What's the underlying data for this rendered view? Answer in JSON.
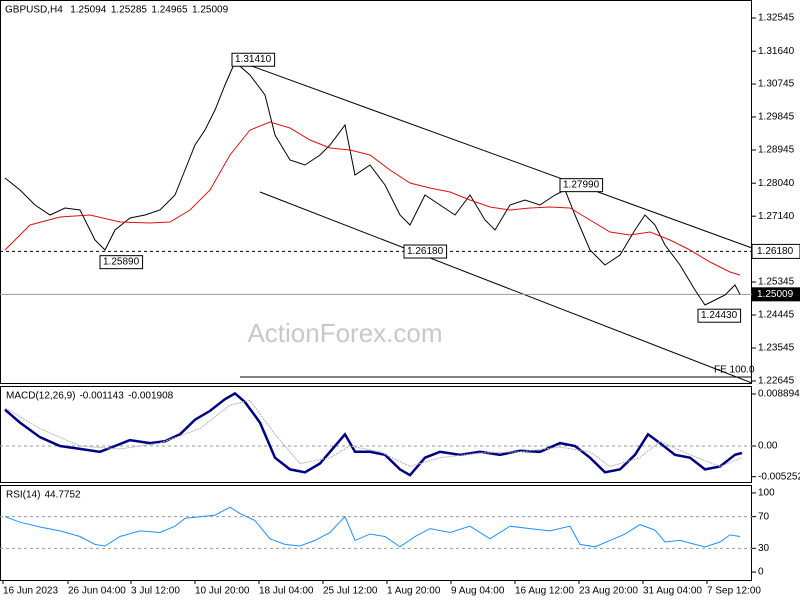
{
  "header": {
    "symbol": "GBPUSD,H4",
    "ohlc": [
      1.25094,
      1.25285,
      1.24965,
      1.25009
    ]
  },
  "watermark": "ActionForex.com",
  "chart_data": [
    {
      "type": "line",
      "panel": "price",
      "ylim": [
        1.22591,
        1.32981
      ],
      "yticks": [
        1.32545,
        {
          "value": 1.3164,
          "label": "1.31640"
        },
        1.30745,
        1.29845,
        1.28945,
        {
          "value": 1.2804,
          "label": "1.28040"
        },
        {
          "value": 1.2714,
          "label": "1.27140"
        },
        1.25345,
        1.24445,
        1.23545,
        1.22645
      ],
      "xlim": [
        0,
        376
      ],
      "xticks": [
        {
          "value": 1.5,
          "label": "16 Jun 2023"
        },
        {
          "value": 34,
          "label": "26 Jun 04:00"
        },
        {
          "value": 65.5,
          "label": "3 Jul 12:00"
        },
        {
          "value": 97.5,
          "label": "10 Jul 20:00"
        },
        {
          "value": 129.5,
          "label": "18 Jul 04:00"
        },
        {
          "value": 161.5,
          "label": "25 Jul 12:00"
        },
        {
          "value": 193.5,
          "label": "1 Aug 20:00"
        },
        {
          "value": 225.5,
          "label": "9 Aug 04:00"
        },
        {
          "value": 257.5,
          "label": "16 Aug 12:00"
        },
        {
          "value": 289.5,
          "label": "23 Aug 20:00"
        },
        {
          "value": 321.5,
          "label": "31 Aug 04:00"
        },
        {
          "value": 353.5,
          "label": "7 Sep 12:00"
        }
      ],
      "series": [
        {
          "color": "#000000",
          "x": [
            2.5,
            10,
            17.5,
            25,
            32.5,
            40,
            47.5,
            52.5,
            57.5,
            65,
            72.5,
            80,
            87.5,
            92.5,
            97.5,
            102.5,
            107.5,
            112.5,
            117.5,
            125,
            132.5,
            137.5,
            145,
            152.5,
            160,
            165,
            172.5,
            177.5,
            185,
            192.5,
            200,
            205,
            212.5,
            220,
            227.5,
            235,
            242.5,
            247.5,
            255,
            262.5,
            270,
            277.5,
            282.5,
            287.5,
            295,
            302.5,
            310,
            317.5,
            322.5,
            327.5,
            332.5,
            340,
            347.5,
            352.5,
            357.5,
            362.5,
            367.5,
            370
          ],
          "values": [
            1.28181,
            1.27854,
            1.27445,
            1.27172,
            1.27363,
            1.27309,
            1.2649,
            1.26218,
            1.26763,
            1.2709,
            1.27172,
            1.27309,
            1.27718,
            1.284,
            1.29081,
            1.2949,
            1.30036,
            1.30718,
            1.31345,
            1.3099,
            1.30445,
            1.29354,
            1.28672,
            1.28536,
            1.28809,
            1.29081,
            1.29627,
            1.28263,
            1.28536,
            1.2799,
            1.27172,
            1.269,
            1.27718,
            1.27445,
            1.27172,
            1.27718,
            1.27036,
            1.26763,
            1.27445,
            1.27581,
            1.27445,
            1.27718,
            1.27854,
            1.27172,
            1.26218,
            1.25809,
            1.26081,
            1.26763,
            1.27172,
            1.269,
            1.26354,
            1.25809,
            1.25127,
            1.24718,
            1.24854,
            1.24991,
            1.25263,
            1.25009
          ]
        },
        {
          "color": "#dd1111",
          "x": [
            2.5,
            15,
            30,
            45,
            60,
            75,
            85,
            95,
            105,
            115,
            125,
            135,
            145,
            155,
            165,
            175,
            185,
            195,
            205,
            215,
            225,
            235,
            245,
            255,
            265,
            275,
            285,
            295,
            305,
            315,
            325,
            335,
            345,
            355,
            365,
            370
          ],
          "values": [
            1.26218,
            1.269,
            1.27118,
            1.27172,
            1.26981,
            1.26954,
            1.26981,
            1.27309,
            1.27854,
            1.28809,
            1.2949,
            1.29709,
            1.29545,
            1.29218,
            1.29,
            1.28945,
            1.28809,
            1.284,
            1.28045,
            1.27909,
            1.278,
            1.27581,
            1.27391,
            1.27309,
            1.27363,
            1.27391,
            1.27363,
            1.27036,
            1.26709,
            1.26627,
            1.26709,
            1.2649,
            1.26218,
            1.25891,
            1.25618,
            1.25536
          ]
        }
      ],
      "annotations": [
        {
          "text": "1.31410",
          "value": 1.3141,
          "x": 116
        },
        {
          "text": "1.25890",
          "value": 1.2589,
          "x": 50
        },
        {
          "text": "1.26180",
          "value": 1.2618,
          "x": 202
        },
        {
          "text": "1.27990",
          "value": 1.2799,
          "x": 280
        },
        {
          "text": "1.24430",
          "value": 1.2443,
          "x": 349
        }
      ],
      "trendlines": [
        {
          "x": [
            117.5,
            376
          ],
          "values": [
            1.314,
            1.26272
          ]
        },
        {
          "x": [
            130,
            376
          ],
          "values": [
            1.278,
            1.22591
          ]
        }
      ],
      "level": {
        "value": 1.2618,
        "label": "1.26180"
      },
      "current": 1.25009,
      "fe": {
        "text": "FE 100.0",
        "value": 1.22754,
        "x": [
          120,
          376
        ]
      }
    },
    {
      "type": "line",
      "panel": "macd",
      "title": "MACD(12,26,9)",
      "readout": [
        -0.001143,
        -0.001908
      ],
      "ylim": [
        -0.00633,
        0.00992
      ],
      "yticks": [
        0.008894,
        {
          "value": 0,
          "label": "0.00"
        },
        -0.005252
      ],
      "levels": [
        0
      ],
      "xlim": [
        0,
        376
      ],
      "series": [
        {
          "color": "#000080",
          "x": [
            2.5,
            10,
            20,
            30,
            40,
            50,
            57.5,
            65,
            75,
            82.5,
            90,
            97.5,
            105,
            112.5,
            117.5,
            122.5,
            130,
            137.5,
            145,
            152.5,
            160,
            167.5,
            172.5,
            177.5,
            185,
            192.5,
            200,
            205,
            212.5,
            220,
            230,
            240,
            250,
            260,
            270,
            280,
            287.5,
            295,
            302.5,
            310,
            317.5,
            324,
            330,
            337.5,
            345,
            352.5,
            360,
            367.5,
            371
          ],
          "values": [
            0.0062,
            0.004,
            0.0015,
            0,
            -0.0005,
            -0.001,
            0,
            0.001,
            0.0005,
            0.0008,
            0.002,
            0.0045,
            0.006,
            0.008,
            0.009,
            0.0075,
            0.004,
            -0.002,
            -0.004,
            -0.0045,
            -0.003,
            0,
            0.002,
            -0.001,
            -0.001,
            -0.0015,
            -0.004,
            -0.005,
            -0.002,
            -0.001,
            -0.0015,
            -0.001,
            -0.0015,
            -0.0008,
            -0.001,
            0.0005,
            0,
            -0.002,
            -0.0045,
            -0.004,
            -0.0015,
            0.002,
            0.0005,
            -0.0015,
            -0.002,
            -0.004,
            -0.0035,
            -0.0015,
            -0.0012
          ]
        },
        {
          "color": "#b0b0b0",
          "x": [
            2.5,
            20,
            40,
            60,
            80,
            100,
            115,
            125,
            137.5,
            150,
            165,
            175,
            190,
            205,
            220,
            240,
            260,
            280,
            295,
            305,
            320,
            330,
            345,
            360,
            371
          ],
          "values": [
            0.0065,
            0.003,
            0,
            -0.0005,
            0.0005,
            0.003,
            0.007,
            0.0078,
            0.002,
            -0.003,
            -0.002,
            0,
            -0.001,
            -0.0035,
            -0.002,
            -0.0012,
            -0.001,
            -0.0002,
            -0.001,
            -0.0035,
            -0.002,
            0.0008,
            -0.0015,
            -0.0035,
            -0.002
          ]
        }
      ]
    },
    {
      "type": "line",
      "panel": "rsi",
      "title": "RSI(14)",
      "readout": [
        44.7752
      ],
      "ylim": [
        -10,
        107.5
      ],
      "yticks": [
        100,
        70,
        30,
        0
      ],
      "levels": [
        70,
        30
      ],
      "xlim": [
        0,
        376
      ],
      "series": [
        {
          "color": "#1e90ff",
          "x": [
            2.5,
            10,
            20,
            30,
            40,
            47.5,
            52.5,
            60,
            70,
            80,
            87.5,
            92.5,
            100,
            107.5,
            115,
            120,
            127.5,
            135,
            142.5,
            150,
            157.5,
            165,
            172.5,
            177.5,
            185,
            192.5,
            200,
            207.5,
            215,
            225,
            235,
            245,
            255,
            265,
            275,
            285,
            290,
            297.5,
            305,
            312.5,
            320,
            327.5,
            332.5,
            340,
            347.5,
            352.5,
            360,
            365,
            370
          ],
          "values": [
            70,
            63,
            57,
            52,
            45,
            35,
            33,
            45,
            52,
            50,
            58,
            68,
            70,
            72,
            82,
            74,
            65,
            42,
            35,
            33,
            40,
            50,
            70,
            40,
            48,
            45,
            32,
            45,
            55,
            50,
            58,
            42,
            58,
            55,
            52,
            58,
            35,
            32,
            40,
            48,
            60,
            53,
            38,
            40,
            35,
            32,
            38,
            47,
            45
          ]
        }
      ]
    }
  ]
}
